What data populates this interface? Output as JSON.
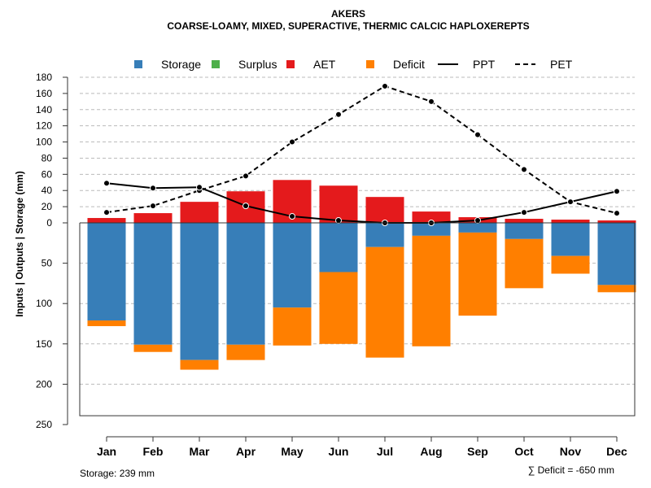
{
  "chart_data": {
    "type": "bar",
    "title": "AKERS",
    "subtitle": "COARSE-LOAMY, MIXED, SUPERACTIVE, THERMIC CALCIC HAPLOXEREPTS",
    "ylabel": "Inputs | Outputs | Storage    (mm)",
    "ylim_upper": [
      0,
      180
    ],
    "ylim_lower": [
      0,
      250
    ],
    "upper_ticks": [
      "180",
      "160",
      "140",
      "120",
      "100",
      "80",
      "60",
      "40",
      "20",
      "0"
    ],
    "lower_ticks": [
      "50",
      "100",
      "150",
      "200",
      "250"
    ],
    "categories": [
      "Jan",
      "Feb",
      "Mar",
      "Apr",
      "May",
      "Jun",
      "Jul",
      "Aug",
      "Sep",
      "Oct",
      "Nov",
      "Dec"
    ],
    "legend": [
      {
        "label": "Storage",
        "kind": "box",
        "color": "#377eb8"
      },
      {
        "label": "Surplus",
        "kind": "box",
        "color": "#4daf4a"
      },
      {
        "label": "AET",
        "kind": "box",
        "color": "#e41a1c"
      },
      {
        "label": "Deficit",
        "kind": "box",
        "color": "#ff7f00"
      },
      {
        "label": "PPT",
        "kind": "solid",
        "color": "#000000"
      },
      {
        "label": "PET",
        "kind": "dashed",
        "color": "#000000"
      }
    ],
    "series": [
      {
        "name": "AET",
        "color": "#e41a1c",
        "values": [
          6,
          12,
          26,
          39,
          53,
          46,
          32,
          14,
          7,
          5,
          4,
          3
        ]
      },
      {
        "name": "Storage",
        "color": "#377eb8",
        "values": [
          121,
          151,
          170,
          151,
          105,
          61,
          30,
          16,
          12,
          20,
          41,
          77
        ]
      },
      {
        "name": "Deficit",
        "color": "#ff7f00",
        "values": [
          7,
          9,
          12,
          19,
          47,
          89,
          137,
          137,
          103,
          61,
          22,
          9
        ]
      },
      {
        "name": "Surplus",
        "color": "#4daf4a",
        "values": [
          0,
          0,
          0,
          0,
          0,
          0,
          0,
          0,
          0,
          0,
          0,
          0
        ]
      },
      {
        "name": "PPT",
        "color": "#000000",
        "values": [
          49,
          43,
          44,
          21,
          8,
          3,
          0,
          0,
          3,
          13,
          26,
          39
        ]
      },
      {
        "name": "PET",
        "color": "#000000",
        "values": [
          13,
          21,
          40,
          58,
          100,
          134,
          169,
          150,
          109,
          66,
          26,
          12
        ]
      }
    ],
    "storage_capacity": 239,
    "grid": true
  },
  "footer": {
    "storage_text": "Storage: 239 mm",
    "deficit_text": "∑ Deficit = -650 mm"
  }
}
